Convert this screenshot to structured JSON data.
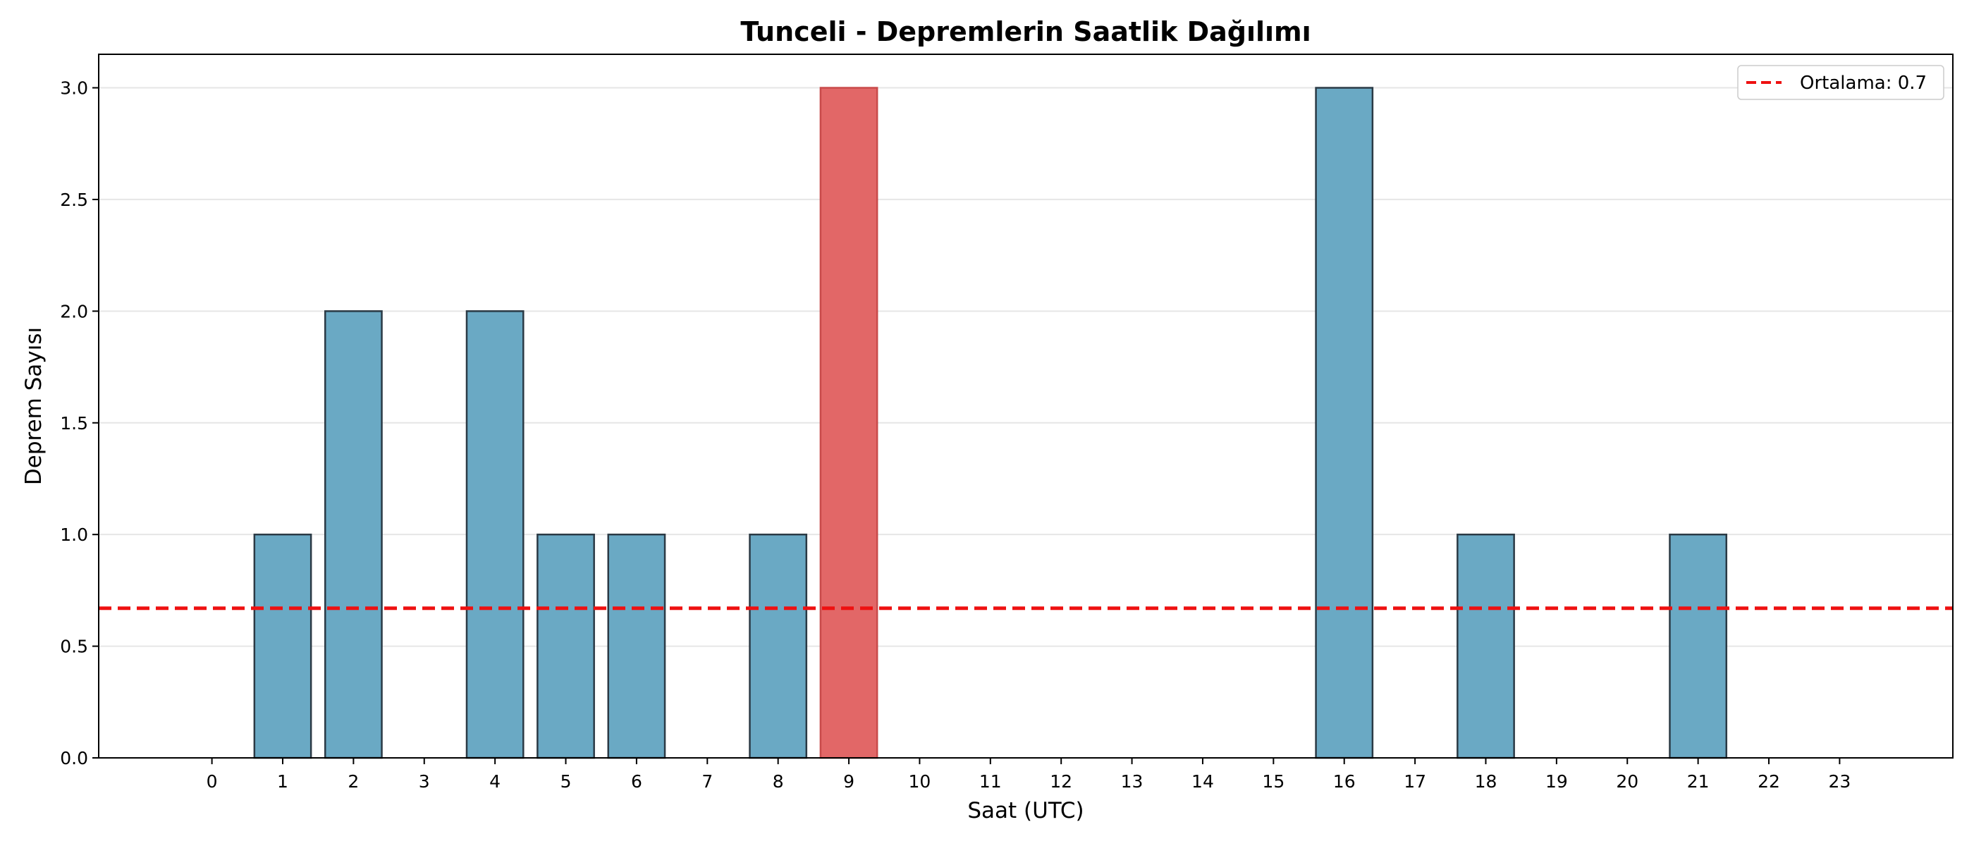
{
  "chart_data": {
    "type": "bar",
    "title": "Tunceli - Depremlerin Saatlik Dağılımı",
    "xlabel": "Saat (UTC)",
    "ylabel": "Deprem Sayısı",
    "categories": [
      "0",
      "1",
      "2",
      "3",
      "4",
      "5",
      "6",
      "7",
      "8",
      "9",
      "10",
      "11",
      "12",
      "13",
      "14",
      "15",
      "16",
      "17",
      "18",
      "19",
      "20",
      "21",
      "22",
      "23"
    ],
    "values": [
      0,
      1,
      2,
      0,
      2,
      1,
      1,
      0,
      1,
      3,
      0,
      0,
      0,
      0,
      0,
      0,
      3,
      0,
      1,
      0,
      0,
      1,
      0,
      0
    ],
    "highlight_index": 9,
    "ylim": [
      0,
      3.15
    ],
    "yticks": [
      "0.0",
      "0.5",
      "1.0",
      "1.5",
      "2.0",
      "2.5",
      "3.0"
    ],
    "mean_line": {
      "value": 0.67,
      "label": "Ortalama: 0.7"
    },
    "colors": {
      "bar": "#6aa9c4",
      "bar_highlight": "#e26767",
      "bar_edge": "#2b3a45",
      "bar_highlight_edge": "#c94a4a",
      "mean_line": "#ee1111",
      "grid": "#e6e6e6"
    },
    "grid": "y",
    "legend_position": "top-right"
  }
}
